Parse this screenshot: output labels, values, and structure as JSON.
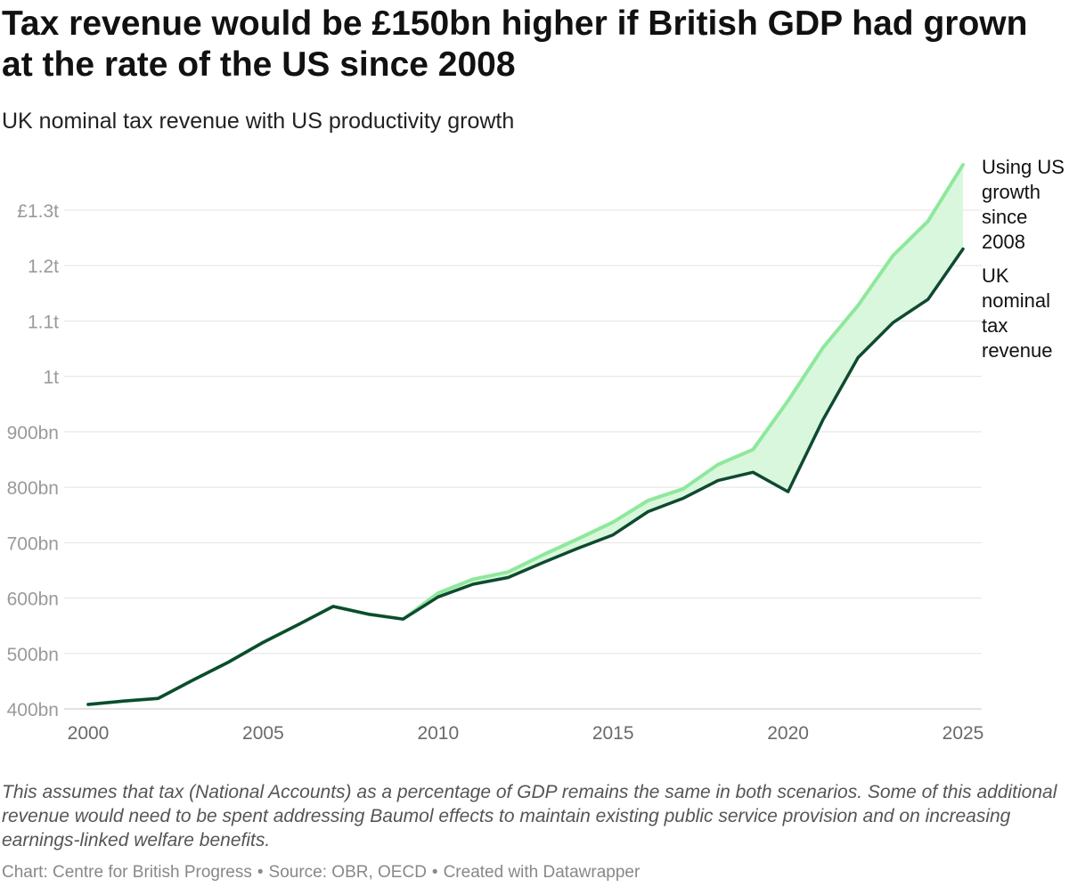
{
  "header": {
    "title": "Tax revenue would be £150bn higher if British GDP had grown at the rate of the US since 2008",
    "subtitle": "UK nominal tax revenue with US productivity growth"
  },
  "footer": {
    "note": "This assumes that tax (National Accounts) as a percentage of GDP remains the same in both scenarios. Some of this additional revenue would need to be spent addressing Baumol effects to maintain existing public service provision and on increasing earnings-linked welfare benefits.",
    "chart_credit": "Chart: Centre for British Progress",
    "source": "Source: OBR, OECD",
    "created_with": "Created with Datawrapper",
    "separator": "•"
  },
  "chart_data": {
    "type": "line",
    "x": [
      2000,
      2001,
      2002,
      2003,
      2004,
      2005,
      2006,
      2007,
      2008,
      2009,
      2010,
      2011,
      2012,
      2013,
      2014,
      2015,
      2016,
      2017,
      2018,
      2019,
      2020,
      2021,
      2022,
      2023,
      2024,
      2025
    ],
    "series": [
      {
        "name": "Using US growth since 2008",
        "label_lines": [
          "Using US",
          "growth",
          "since",
          "2008"
        ],
        "color": "#8ee89c",
        "values": [
          408,
          414,
          419,
          452,
          484,
          520,
          552,
          585,
          571,
          562,
          609,
          634,
          647,
          678,
          707,
          737,
          776,
          797,
          841,
          868,
          956,
          1052,
          1128,
          1218,
          1280,
          1382
        ]
      },
      {
        "name": "UK nominal tax revenue",
        "label_lines": [
          "UK",
          "nominal",
          "tax",
          "revenue"
        ],
        "color": "#0e4a2f",
        "values": [
          408,
          414,
          419,
          452,
          484,
          520,
          552,
          585,
          571,
          562,
          602,
          625,
          637,
          664,
          690,
          714,
          756,
          780,
          812,
          827,
          792,
          922,
          1034,
          1097,
          1139,
          1230
        ]
      }
    ],
    "fill_between": {
      "color": "#d8f7dc"
    },
    "xlim": [
      2000,
      2025
    ],
    "ylim": [
      400,
      1300
    ],
    "x_ticks": [
      2000,
      2005,
      2010,
      2015,
      2020,
      2025
    ],
    "x_tick_labels": [
      "2000",
      "2005",
      "2010",
      "2015",
      "2020",
      "2025"
    ],
    "y_ticks": [
      400,
      500,
      600,
      700,
      800,
      900,
      1000,
      1100,
      1200,
      1300
    ],
    "y_tick_labels": [
      "400bn",
      "500bn",
      "600bn",
      "700bn",
      "800bn",
      "900bn",
      "1t",
      "1.1t",
      "1.2t",
      "£1.3t"
    ],
    "y_unit": "£bn",
    "grid": true,
    "legend": "direct labels at right end of lines",
    "xlabel": "",
    "ylabel": ""
  }
}
